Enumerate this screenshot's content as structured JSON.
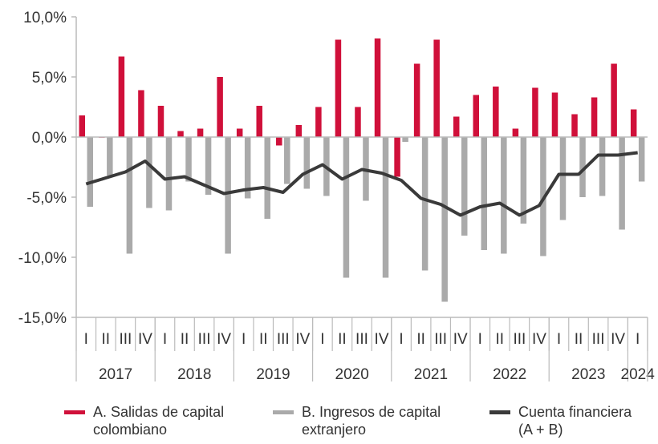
{
  "chart_data": {
    "type": "bar",
    "title": "",
    "xlabel": "",
    "ylabel": "",
    "ylim": [
      -15,
      10
    ],
    "yticks": [
      10,
      5,
      0,
      -5,
      -10,
      -15
    ],
    "ytick_labels": [
      "10,0%",
      "5,0%",
      "0,0%",
      "-5,0%",
      "-10,0%",
      "-15,0%"
    ],
    "grid": false,
    "legend_position": "bottom",
    "years": [
      {
        "label": "2017",
        "quarters": 4
      },
      {
        "label": "2018",
        "quarters": 4
      },
      {
        "label": "2019",
        "quarters": 4
      },
      {
        "label": "2020",
        "quarters": 4
      },
      {
        "label": "2021",
        "quarters": 4
      },
      {
        "label": "2022",
        "quarters": 4
      },
      {
        "label": "2023",
        "quarters": 4
      },
      {
        "label": "2024",
        "quarters": 1
      }
    ],
    "categories": [
      "I",
      "II",
      "III",
      "IV",
      "I",
      "II",
      "III",
      "IV",
      "I",
      "II",
      "III",
      "IV",
      "I",
      "II",
      "III",
      "IV",
      "I",
      "II",
      "III",
      "IV",
      "I",
      "II",
      "III",
      "IV",
      "I",
      "II",
      "III",
      "IV",
      "I"
    ],
    "series": [
      {
        "name": "A. Salidas de capital colombiano",
        "kind": "bar",
        "color": "#d0103a",
        "values": [
          1.8,
          -0.05,
          6.7,
          3.9,
          2.6,
          0.5,
          0.7,
          5.0,
          0.7,
          2.6,
          -0.7,
          1.0,
          2.5,
          8.1,
          2.5,
          8.2,
          -3.3,
          6.1,
          8.1,
          1.7,
          3.5,
          4.2,
          0.7,
          4.1,
          3.7,
          1.9,
          3.3,
          6.1,
          2.3
        ]
      },
      {
        "name": "B. Ingresos de capital extranjero",
        "kind": "bar",
        "color": "#aaaaaa",
        "values": [
          -5.8,
          -3.2,
          -9.7,
          -5.9,
          -6.1,
          -3.7,
          -4.8,
          -9.7,
          -5.1,
          -6.8,
          -3.9,
          -4.3,
          -4.9,
          -11.7,
          -5.3,
          -11.7,
          -0.4,
          -11.1,
          -13.7,
          -8.2,
          -9.4,
          -9.7,
          -7.2,
          -9.9,
          -6.9,
          -5.0,
          -4.9,
          -7.7,
          -3.7
        ]
      },
      {
        "name": "Cuenta financiera (A + B)",
        "kind": "line",
        "color": "#3a3a3a",
        "values": [
          -3.9,
          -3.4,
          -2.9,
          -2.0,
          -3.5,
          -3.3,
          -4.0,
          -4.7,
          -4.4,
          -4.2,
          -4.6,
          -3.1,
          -2.3,
          -3.5,
          -2.7,
          -3.0,
          -3.6,
          -5.1,
          -5.6,
          -6.5,
          -5.8,
          -5.5,
          -6.5,
          -5.7,
          -3.1,
          -3.1,
          -1.5,
          -1.5,
          -1.3
        ]
      }
    ]
  },
  "legend": [
    {
      "line1": "A. Salidas de capital",
      "line2": "colombiano"
    },
    {
      "line1": "B. Ingresos de capital",
      "line2": "extranjero"
    },
    {
      "line1": "Cuenta financiera",
      "line2": "(A + B)"
    }
  ]
}
